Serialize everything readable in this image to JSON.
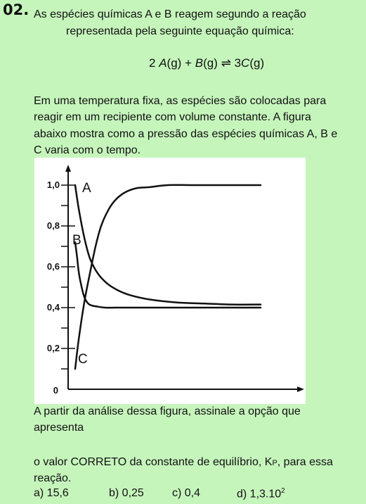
{
  "question": {
    "number": "02.",
    "intro_line1": "As espécies químicas A e B reagem segundo a reação",
    "intro_line2": "representada pela seguinte equação química:",
    "equation": {
      "coef_a": "2",
      "a": "A",
      "state_a": "(g)",
      "plus": "+",
      "b": "B",
      "state_b": "(g)",
      "arrow": "⇌",
      "coef_c": "3",
      "c": "C",
      "state_c": "(g)"
    },
    "para_lines": [
      "Em uma temperatura fixa, as espécies são colocadas para",
      "reagir em um recipiente com volume constante. A figura",
      "abaixo mostra como a pressão das espécies químicas A, B e",
      "C varia com o tempo."
    ],
    "after_lines": [
      "A partir da análise dessa figura, assinale a opção que",
      "apresenta"
    ],
    "kp_line1_prefix": "o valor CORRETO da constante de equilíbrio, K",
    "kp_sub": "P",
    "kp_line1_suffix": ", para essa",
    "kp_line2": "reação.",
    "options": {
      "a": "a) 15,6",
      "b": "b) 0,25",
      "c": "c) 0,4",
      "d_prefix": "d) 1,3.10",
      "d_exp": "2"
    }
  },
  "chart_data": {
    "type": "line",
    "yticks": [
      "1,0",
      "0,8",
      "0,6",
      "0,4",
      "0,2",
      "0"
    ],
    "ylim": [
      0,
      1.05
    ],
    "xlim": [
      0,
      10
    ],
    "series": [
      {
        "name": "A",
        "x": [
          0,
          0.2,
          0.5,
          0.8,
          1.2,
          1.7,
          2.3,
          3.0,
          4.0,
          5.5,
          7.0,
          8.5,
          10.0
        ],
        "y": [
          1.0,
          0.88,
          0.74,
          0.64,
          0.57,
          0.52,
          0.485,
          0.46,
          0.44,
          0.425,
          0.42,
          0.415,
          0.415
        ]
      },
      {
        "name": "B",
        "x": [
          0,
          0.1,
          0.2,
          0.35,
          0.5,
          0.7,
          0.9,
          1.2,
          1.6,
          2.2,
          3.5,
          6.0,
          10.0
        ],
        "y": [
          0.72,
          0.65,
          0.57,
          0.5,
          0.45,
          0.42,
          0.41,
          0.405,
          0.4,
          0.4,
          0.4,
          0.4,
          0.4
        ]
      },
      {
        "name": "C",
        "x": [
          0,
          0.2,
          0.5,
          0.8,
          1.1,
          1.4,
          1.8,
          2.2,
          2.7,
          3.3,
          4.0,
          5.0,
          6.5,
          8.0,
          10.0
        ],
        "y": [
          0.1,
          0.25,
          0.43,
          0.57,
          0.7,
          0.8,
          0.88,
          0.93,
          0.965,
          0.985,
          0.99,
          1.0,
          1.0,
          1.0,
          1.0
        ]
      }
    ],
    "grid": false
  }
}
